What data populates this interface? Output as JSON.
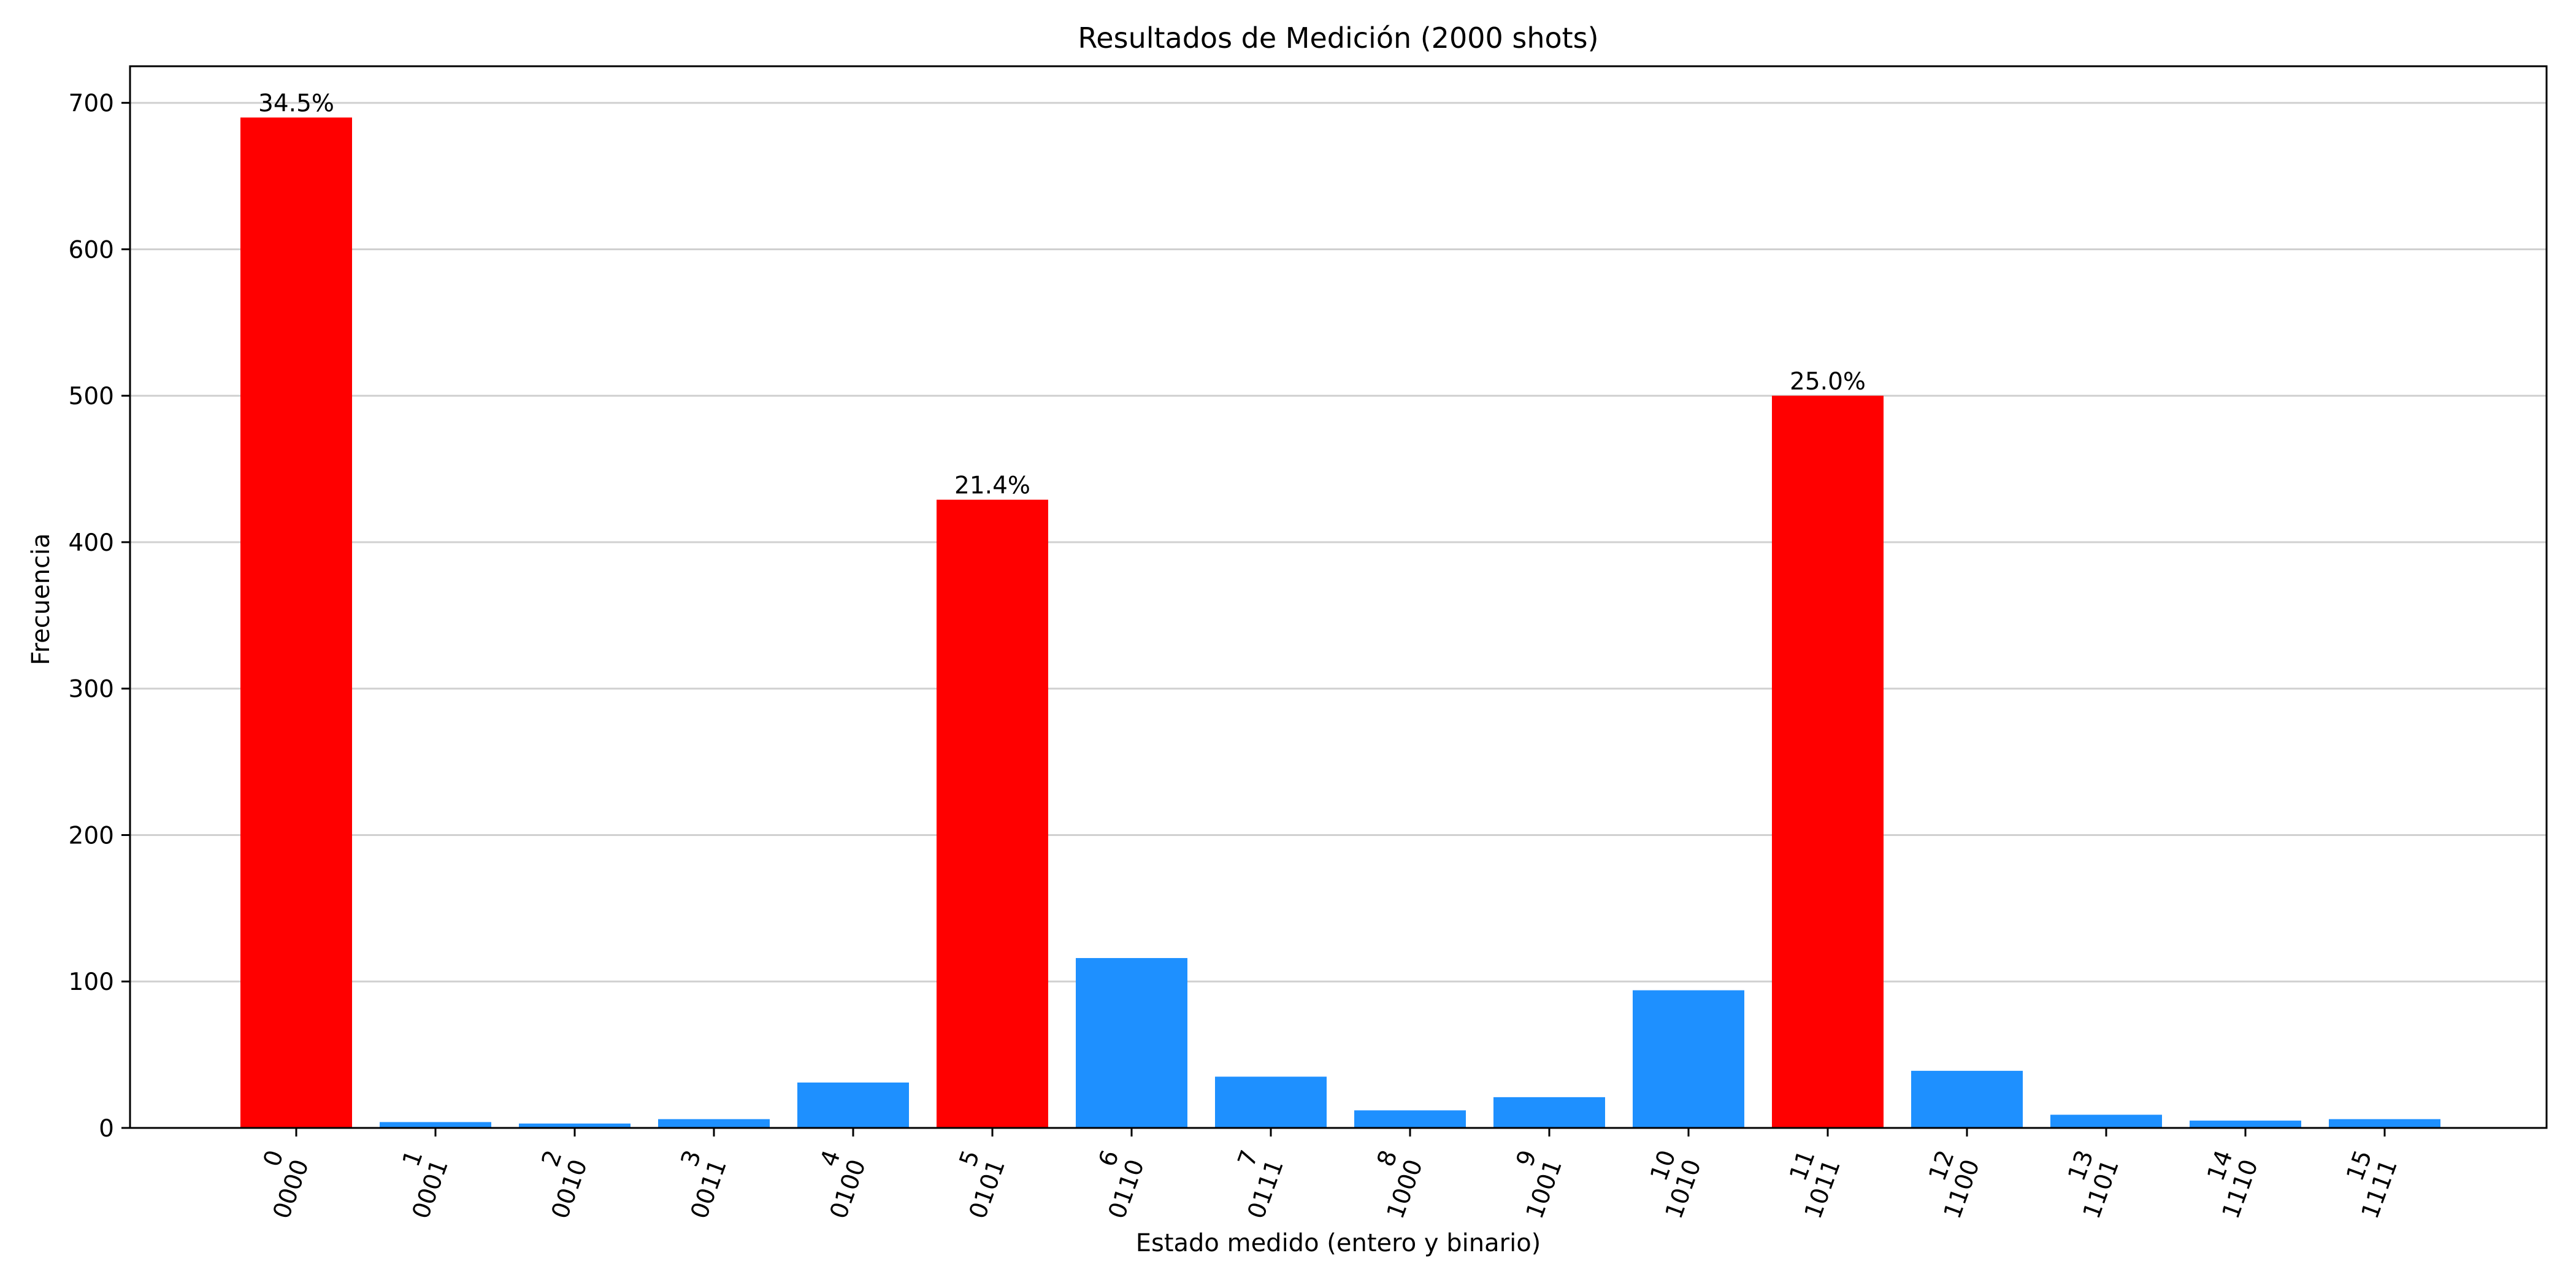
{
  "chart_data": {
    "type": "bar",
    "title": "Resultados de Medición (2000 shots)",
    "xlabel": "Estado medido (entero y binario)",
    "ylabel": "Frecuencia",
    "ylim": [
      0,
      725
    ],
    "yticks": [
      0,
      100,
      200,
      300,
      400,
      500,
      600,
      700
    ],
    "grid": "y-axis on",
    "categories": [
      {
        "int": "0",
        "bin": "0000"
      },
      {
        "int": "1",
        "bin": "0001"
      },
      {
        "int": "2",
        "bin": "0010"
      },
      {
        "int": "3",
        "bin": "0011"
      },
      {
        "int": "4",
        "bin": "0100"
      },
      {
        "int": "5",
        "bin": "0101"
      },
      {
        "int": "6",
        "bin": "0110"
      },
      {
        "int": "7",
        "bin": "0111"
      },
      {
        "int": "8",
        "bin": "1000"
      },
      {
        "int": "9",
        "bin": "1001"
      },
      {
        "int": "10",
        "bin": "1010"
      },
      {
        "int": "11",
        "bin": "1011"
      },
      {
        "int": "12",
        "bin": "1100"
      },
      {
        "int": "13",
        "bin": "1101"
      },
      {
        "int": "14",
        "bin": "1110"
      },
      {
        "int": "15",
        "bin": "1111"
      }
    ],
    "values": [
      690,
      4,
      3,
      6,
      31,
      429,
      116,
      35,
      12,
      21,
      94,
      500,
      39,
      9,
      5,
      6
    ],
    "highlighted": [
      true,
      false,
      false,
      false,
      false,
      true,
      false,
      false,
      false,
      false,
      false,
      true,
      false,
      false,
      false,
      false
    ],
    "data_labels": [
      "34.5%",
      "",
      "",
      "",
      "",
      "21.4%",
      "",
      "",
      "",
      "",
      "",
      "25.0%",
      "",
      "",
      "",
      ""
    ],
    "colors": {
      "highlight": "#ff0000",
      "normal": "#1e90ff"
    }
  }
}
